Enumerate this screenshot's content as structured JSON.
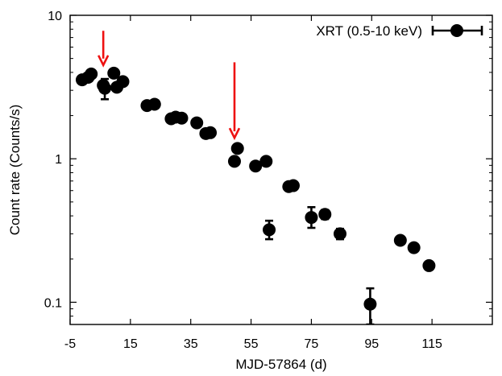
{
  "chart_data": {
    "type": "scatter",
    "xlabel": "MJD-57864 (d)",
    "ylabel": "Count rate (Counts/s)",
    "xlim": [
      -5,
      135
    ],
    "ylim": [
      0.07,
      10
    ],
    "yscale": "log",
    "x_ticks": [
      -5,
      15,
      35,
      55,
      75,
      95,
      115
    ],
    "x_tick_labels": [
      "-5",
      "15",
      "35",
      "55",
      "75",
      "95",
      "115"
    ],
    "y_ticks": [
      0.1,
      1,
      10
    ],
    "y_tick_labels": [
      "0.1",
      "1",
      "10"
    ],
    "legend_position": "top-right",
    "series": [
      {
        "name": "XRT (0.5-10 keV)",
        "color": "#000000",
        "points": [
          {
            "x": -1.0,
            "y": 3.55,
            "lo": 3.45,
            "hi": 3.65
          },
          {
            "x": 1.0,
            "y": 3.7,
            "lo": 3.6,
            "hi": 3.8
          },
          {
            "x": 2.0,
            "y": 3.9,
            "lo": 3.8,
            "hi": 4.0
          },
          {
            "x": 6.0,
            "y": 3.25,
            "lo": 3.1,
            "hi": 3.4
          },
          {
            "x": 6.5,
            "y": 3.1,
            "lo": 2.6,
            "hi": 3.6
          },
          {
            "x": 9.5,
            "y": 3.95,
            "lo": 3.85,
            "hi": 4.05
          },
          {
            "x": 10.5,
            "y": 3.15,
            "lo": 3.05,
            "hi": 3.25
          },
          {
            "x": 12.5,
            "y": 3.45,
            "lo": 3.35,
            "hi": 3.55
          },
          {
            "x": 20.5,
            "y": 2.35,
            "lo": 2.3,
            "hi": 2.4
          },
          {
            "x": 23.0,
            "y": 2.4,
            "lo": 2.35,
            "hi": 2.45
          },
          {
            "x": 28.5,
            "y": 1.9,
            "lo": 1.85,
            "hi": 1.95
          },
          {
            "x": 30.0,
            "y": 1.95,
            "lo": 1.9,
            "hi": 2.0
          },
          {
            "x": 32.0,
            "y": 1.92,
            "lo": 1.87,
            "hi": 1.97
          },
          {
            "x": 37.0,
            "y": 1.78,
            "lo": 1.73,
            "hi": 1.83
          },
          {
            "x": 40.0,
            "y": 1.5,
            "lo": 1.46,
            "hi": 1.54
          },
          {
            "x": 41.5,
            "y": 1.52,
            "lo": 1.48,
            "hi": 1.56
          },
          {
            "x": 49.5,
            "y": 0.96,
            "lo": 0.93,
            "hi": 0.99
          },
          {
            "x": 50.5,
            "y": 1.18,
            "lo": 1.14,
            "hi": 1.22
          },
          {
            "x": 56.5,
            "y": 0.89,
            "lo": 0.86,
            "hi": 0.92
          },
          {
            "x": 60.0,
            "y": 0.96,
            "lo": 0.93,
            "hi": 0.99
          },
          {
            "x": 61.0,
            "y": 0.32,
            "lo": 0.275,
            "hi": 0.37
          },
          {
            "x": 67.5,
            "y": 0.64,
            "lo": 0.62,
            "hi": 0.66
          },
          {
            "x": 69.0,
            "y": 0.65,
            "lo": 0.63,
            "hi": 0.67
          },
          {
            "x": 75.0,
            "y": 0.39,
            "lo": 0.33,
            "hi": 0.46
          },
          {
            "x": 79.5,
            "y": 0.41,
            "lo": 0.38,
            "hi": 0.44
          },
          {
            "x": 84.5,
            "y": 0.3,
            "lo": 0.275,
            "hi": 0.325
          },
          {
            "x": 94.5,
            "y": 0.097,
            "lo": 0.07,
            "hi": 0.125
          },
          {
            "x": 104.5,
            "y": 0.27,
            "lo": 0.26,
            "hi": 0.28
          },
          {
            "x": 109.0,
            "y": 0.24,
            "lo": 0.23,
            "hi": 0.25
          },
          {
            "x": 114.0,
            "y": 0.18,
            "lo": 0.173,
            "hi": 0.187
          }
        ]
      }
    ],
    "annotations": [
      {
        "type": "arrow",
        "color": "#ee1111",
        "x": 6.0,
        "y_from": 7.8,
        "y_to": 4.5
      },
      {
        "type": "arrow",
        "color": "#ee1111",
        "x": 49.5,
        "y_from": 4.7,
        "y_to": 1.4
      }
    ]
  }
}
